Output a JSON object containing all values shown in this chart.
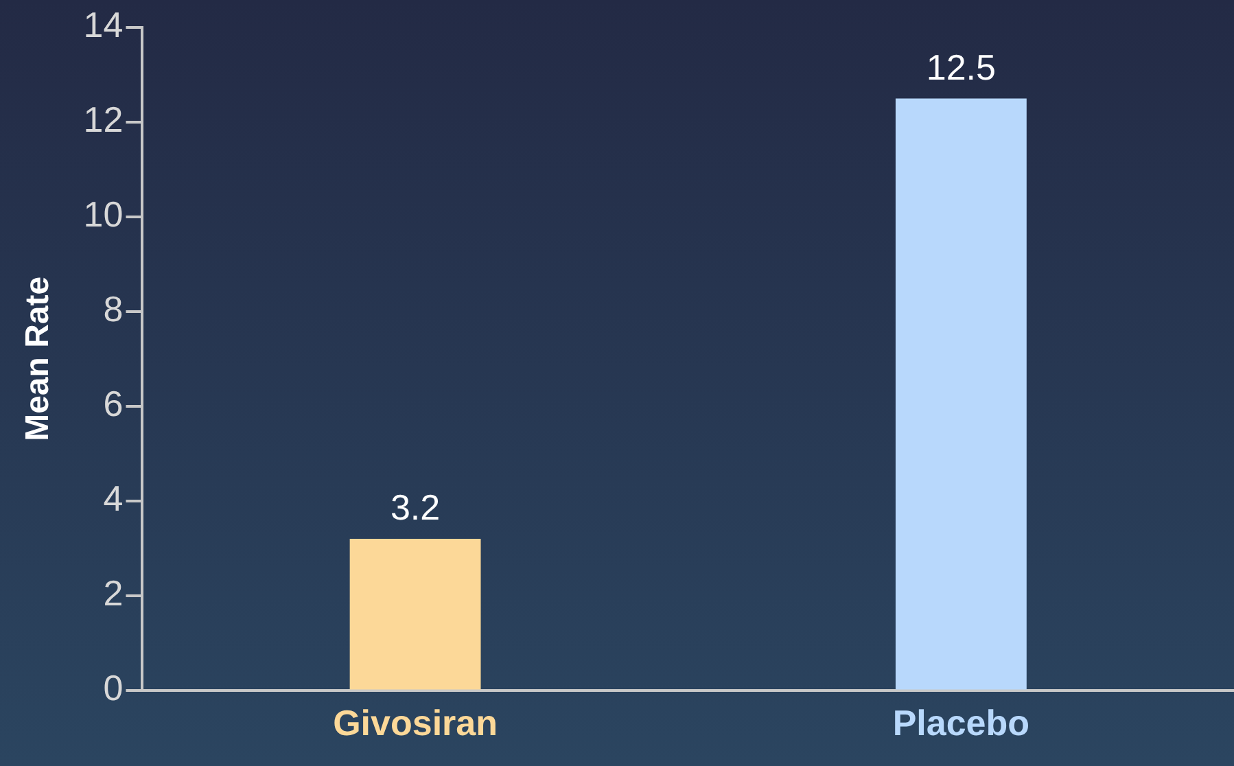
{
  "chart_data": {
    "type": "bar",
    "ylabel": "Mean Rate",
    "categories": [
      "Givosiran",
      "Placebo"
    ],
    "values": [
      3.2,
      12.5
    ],
    "colors": [
      "#fcd898",
      "#b8d8fc"
    ],
    "ylim": [
      0,
      14
    ],
    "yticks": [
      0,
      2,
      4,
      6,
      8,
      10,
      12,
      14
    ],
    "data_labels": true,
    "grid": false,
    "legend": false
  }
}
